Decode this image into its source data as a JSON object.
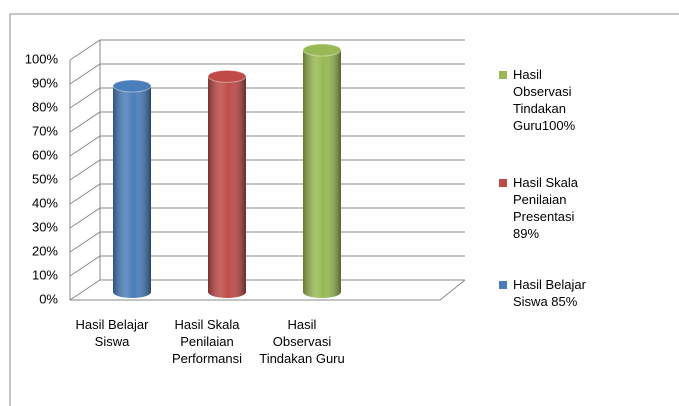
{
  "chart_data": {
    "type": "bar",
    "categories": [
      "Hasil Belajar Siswa",
      "Hasil Skala Penilaian Performansi",
      "Hasil Observasi Tindakan Guru"
    ],
    "series": [
      {
        "name": "Hasil Belajar Siswa 85%",
        "color": "#4a7ebb",
        "values": [
          85,
          null,
          null
        ]
      },
      {
        "name": "Hasil Skala Penilaian Presentasi 89%",
        "color": "#be4b48",
        "values": [
          null,
          89,
          null
        ]
      },
      {
        "name": "Hasil Observasi Tindakan Guru100%",
        "color": "#98b954",
        "values": [
          null,
          null,
          100
        ]
      }
    ],
    "ylim": [
      0,
      100
    ],
    "yticks": [
      {
        "value": 0,
        "label": "0%"
      },
      {
        "value": 10,
        "label": "10%"
      },
      {
        "value": 20,
        "label": "20%"
      },
      {
        "value": 30,
        "label": "30%"
      },
      {
        "value": 40,
        "label": "40%"
      },
      {
        "value": 50,
        "label": "50%"
      },
      {
        "value": 60,
        "label": "60%"
      },
      {
        "value": 70,
        "label": "70%"
      },
      {
        "value": 80,
        "label": "80%"
      },
      {
        "value": 90,
        "label": "90%"
      },
      {
        "value": 100,
        "label": "100%"
      }
    ],
    "grid": true,
    "legend": "right"
  }
}
